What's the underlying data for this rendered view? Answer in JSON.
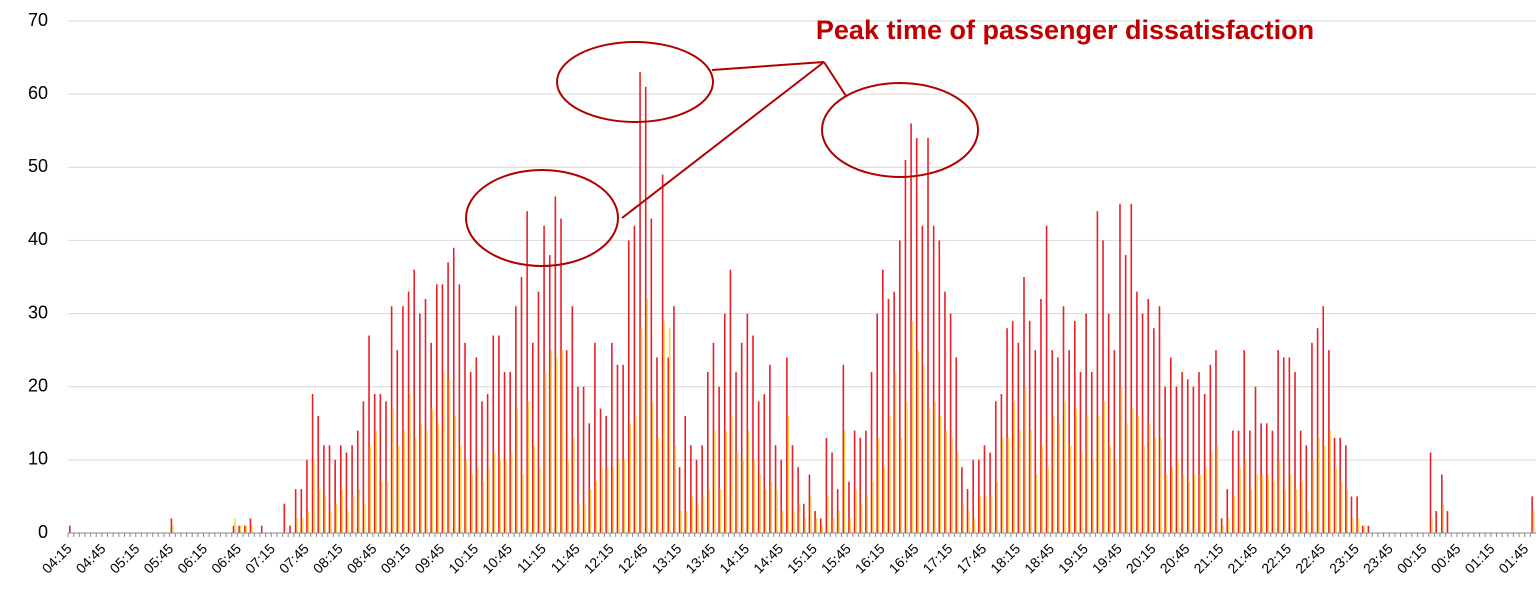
{
  "chart_data": {
    "type": "bar",
    "annotation": "Peak time of passenger dissatisfaction",
    "categories": [
      "04:15",
      null,
      null,
      null,
      null,
      null,
      "04:45",
      null,
      null,
      null,
      null,
      null,
      "05:15",
      null,
      null,
      null,
      null,
      null,
      "05:45",
      null,
      null,
      null,
      null,
      null,
      "06:15",
      null,
      null,
      null,
      null,
      null,
      "06:45",
      null,
      null,
      null,
      null,
      null,
      "07:15",
      null,
      null,
      null,
      null,
      null,
      "07:45",
      null,
      null,
      null,
      null,
      null,
      "08:15",
      null,
      null,
      null,
      null,
      null,
      "08:45",
      null,
      null,
      null,
      null,
      null,
      "09:15",
      null,
      null,
      null,
      null,
      null,
      "09:45",
      null,
      null,
      null,
      null,
      null,
      "10:15",
      null,
      null,
      null,
      null,
      null,
      "10:45",
      null,
      null,
      null,
      null,
      null,
      "11:15",
      null,
      null,
      null,
      null,
      null,
      "11:45",
      null,
      null,
      null,
      null,
      null,
      "12:15",
      null,
      null,
      null,
      null,
      null,
      "12:45",
      null,
      null,
      null,
      null,
      null,
      "13:15",
      null,
      null,
      null,
      null,
      null,
      "13:45",
      null,
      null,
      null,
      null,
      null,
      "14:15",
      null,
      null,
      null,
      null,
      null,
      "14:45",
      null,
      null,
      null,
      null,
      null,
      "15:15",
      null,
      null,
      null,
      null,
      null,
      "15:45",
      null,
      null,
      null,
      null,
      null,
      "16:15",
      null,
      null,
      null,
      null,
      null,
      "16:45",
      null,
      null,
      null,
      null,
      null,
      "17:15",
      null,
      null,
      null,
      null,
      null,
      "17:45",
      null,
      null,
      null,
      null,
      null,
      "18:15",
      null,
      null,
      null,
      null,
      null,
      "18:45",
      null,
      null,
      null,
      null,
      null,
      "19:15",
      null,
      null,
      null,
      null,
      null,
      "19:45",
      null,
      null,
      null,
      null,
      null,
      "20:15",
      null,
      null,
      null,
      null,
      null,
      "20:45",
      null,
      null,
      null,
      null,
      null,
      "21:15",
      null,
      null,
      null,
      null,
      null,
      "21:45",
      null,
      null,
      null,
      null,
      null,
      "22:15",
      null,
      null,
      null,
      null,
      null,
      "22:45",
      null,
      null,
      null,
      null,
      null,
      "23:15",
      null,
      null,
      null,
      null,
      null,
      "23:45",
      null,
      null,
      null,
      null,
      null,
      "00:15",
      null,
      null,
      null,
      null,
      null,
      "00:45",
      null,
      null,
      null,
      null,
      null,
      "01:15",
      null,
      null,
      null,
      null,
      null,
      "01:45",
      null
    ],
    "series": [
      {
        "color": "#e8202a",
        "values": [
          1,
          0,
          0,
          0,
          0,
          0,
          0,
          0,
          0,
          0,
          0,
          0,
          0,
          0,
          0,
          0,
          0,
          0,
          2,
          0,
          0,
          0,
          0,
          0,
          0,
          0,
          0,
          0,
          0,
          1,
          1,
          1,
          2,
          0,
          1,
          0,
          0,
          0,
          4,
          1,
          6,
          6,
          10,
          19,
          16,
          12,
          12,
          10,
          12,
          11,
          12,
          14,
          18,
          27,
          19,
          19,
          18,
          31,
          25,
          31,
          33,
          36,
          30,
          32,
          26,
          34,
          34,
          37,
          39,
          34,
          26,
          22,
          24,
          18,
          19,
          27,
          27,
          22,
          22,
          31,
          35,
          44,
          26,
          33,
          42,
          38,
          46,
          43,
          25,
          31,
          20,
          20,
          15,
          26,
          17,
          16,
          26,
          23,
          23,
          40,
          42,
          63,
          61,
          43,
          24,
          49,
          24,
          31,
          9,
          16,
          12,
          10,
          12,
          22,
          26,
          20,
          30,
          36,
          22,
          26,
          30,
          27,
          18,
          19,
          23,
          12,
          10,
          24,
          12,
          9,
          4,
          8,
          3,
          2,
          13,
          11,
          6,
          23,
          7,
          14,
          13,
          14,
          22,
          30,
          36,
          32,
          33,
          40,
          51,
          56,
          54,
          42,
          54,
          42,
          40,
          33,
          30,
          24,
          9,
          6,
          10,
          10,
          12,
          11,
          18,
          19,
          28,
          29,
          26,
          35,
          29,
          25,
          32,
          42,
          25,
          24,
          31,
          25,
          29,
          22,
          30,
          22,
          44,
          40,
          30,
          25,
          45,
          38,
          45,
          33,
          30,
          32,
          28,
          31,
          20,
          24,
          20,
          22,
          21,
          20,
          22,
          19,
          23,
          25,
          2,
          6,
          14,
          14,
          25,
          14,
          20,
          15,
          15,
          14,
          25,
          24,
          24,
          22,
          14,
          12,
          26,
          28,
          31,
          25,
          13,
          13,
          12,
          5,
          5,
          1,
          1,
          0,
          0,
          0,
          0,
          0,
          0,
          0,
          0,
          0,
          0,
          11,
          3,
          8,
          3,
          0,
          0,
          0,
          0,
          0,
          0,
          0,
          0,
          0,
          0,
          0,
          0,
          0,
          0,
          5
        ]
      },
      {
        "color": "#f5d547",
        "values": [
          0,
          0,
          0,
          0,
          0,
          0,
          0,
          0,
          0,
          0,
          0,
          0,
          0,
          0,
          0,
          0,
          0,
          0,
          1,
          0,
          0,
          0,
          0,
          0,
          0,
          0,
          0,
          0,
          0,
          2,
          1,
          1,
          1,
          0,
          0,
          0,
          0,
          0,
          0,
          0,
          2,
          2,
          3,
          10,
          6,
          5,
          3,
          4,
          6,
          3,
          5,
          6,
          4,
          12,
          14,
          7,
          7,
          17,
          12,
          14,
          19,
          13,
          15,
          14,
          17,
          15,
          22,
          21,
          16,
          12,
          10,
          8,
          9,
          7,
          9,
          11,
          10,
          10,
          11,
          17,
          8,
          18,
          12,
          9,
          22,
          25,
          24,
          25,
          10,
          13,
          4,
          4,
          6,
          7,
          9,
          9,
          9,
          10,
          10,
          15,
          16,
          28,
          32,
          18,
          13,
          29,
          28,
          12,
          3,
          3,
          5,
          4,
          5,
          6,
          14,
          6,
          14,
          16,
          11,
          10,
          14,
          10,
          8,
          6,
          7,
          6,
          3,
          16,
          3,
          4,
          2,
          5,
          2,
          1,
          5,
          2,
          3,
          14,
          2,
          6,
          4,
          5,
          7,
          13,
          9,
          16,
          22,
          13,
          18,
          29,
          25,
          23,
          17,
          18,
          16,
          14,
          13,
          11,
          4,
          3,
          2,
          5,
          5,
          5,
          7,
          13,
          13,
          18,
          14,
          20,
          14,
          8,
          12,
          9,
          16,
          15,
          18,
          12,
          17,
          11,
          16,
          10,
          16,
          18,
          12,
          10,
          20,
          15,
          17,
          16,
          12,
          15,
          13,
          13,
          8,
          9,
          10,
          8,
          7,
          8,
          8,
          9,
          11,
          12,
          1,
          2,
          5,
          9,
          10,
          6,
          8,
          8,
          8,
          7,
          10,
          6,
          8,
          6,
          7,
          3,
          10,
          13,
          12,
          14,
          9,
          7,
          6,
          2,
          2,
          1,
          0,
          0,
          0,
          0,
          0,
          0,
          0,
          0,
          0,
          0,
          0,
          2,
          0,
          4,
          0,
          0,
          0,
          0,
          0,
          0,
          0,
          0,
          0,
          0,
          0,
          0,
          0,
          0,
          0,
          3
        ]
      }
    ],
    "ylim": [
      0,
      70
    ],
    "yticks": [
      0,
      10,
      20,
      30,
      40,
      50,
      60,
      70
    ],
    "grid": true
  }
}
